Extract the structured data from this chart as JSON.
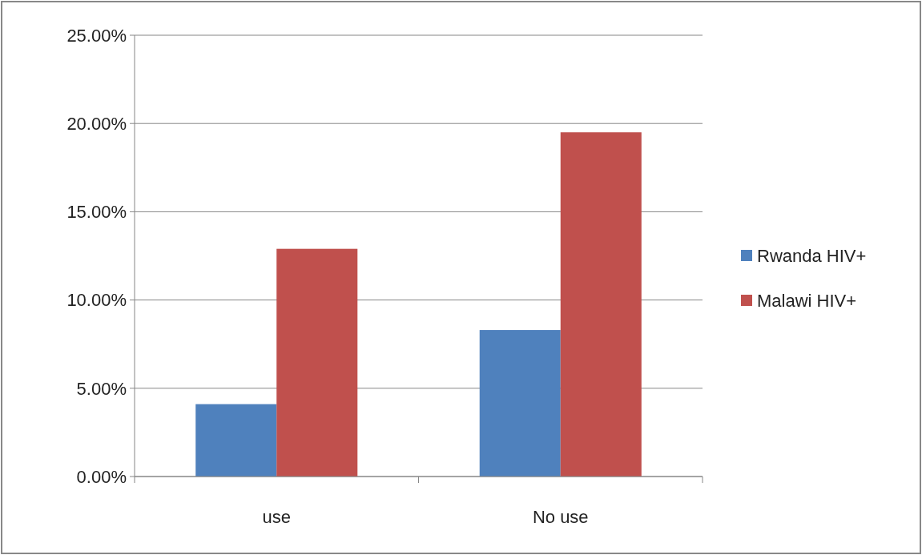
{
  "chart_data": {
    "type": "bar",
    "categories": [
      "use",
      "No use"
    ],
    "series": [
      {
        "name": "Rwanda HIV+",
        "color": "#4f81bd",
        "values": [
          4.1,
          8.3
        ]
      },
      {
        "name": "Malawi HIV+",
        "color": "#c0504d",
        "values": [
          12.9,
          19.5
        ]
      }
    ],
    "ylim": [
      0,
      25
    ],
    "yticks": [
      {
        "value": 0,
        "label": "0.00%"
      },
      {
        "value": 5,
        "label": "5.00%"
      },
      {
        "value": 10,
        "label": "10.00%"
      },
      {
        "value": 15,
        "label": "15.00%"
      },
      {
        "value": 20,
        "label": "20.00%"
      },
      {
        "value": 25,
        "label": "25.00%"
      }
    ],
    "grid": "y",
    "legend": "right"
  }
}
